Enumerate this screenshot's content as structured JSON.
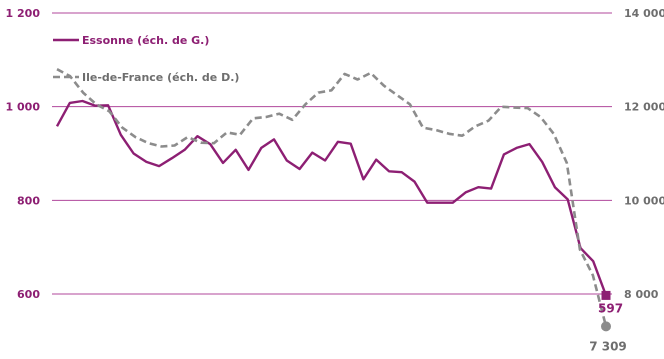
{
  "chart_data": {
    "type": "line",
    "axes": {
      "left": {
        "range": [
          600,
          1200
        ],
        "ticks": [
          "600",
          "800",
          "1 000",
          "1 200"
        ],
        "tick_values": [
          600,
          800,
          1000,
          1200
        ]
      },
      "right": {
        "range": [
          8000,
          14000
        ],
        "ticks": [
          "8 000",
          "10 000",
          "12 000",
          "14 000"
        ],
        "tick_values": [
          8000,
          10000,
          12000,
          14000
        ]
      }
    },
    "grid": true,
    "legend_position": "top-left",
    "series": [
      {
        "name": "Essonne (éch. de G.)",
        "axis": "left",
        "color": "#8d1f73",
        "style": "solid",
        "values": [
          958,
          1008,
          1012,
          1002,
          1003,
          940,
          900,
          882,
          873,
          890,
          908,
          937,
          920,
          880,
          908,
          865,
          912,
          930,
          885,
          867,
          902,
          885,
          925,
          921,
          845,
          887,
          862,
          860,
          840,
          795,
          795,
          795,
          817,
          828,
          825,
          898,
          912,
          920,
          882,
          828,
          802,
          698,
          670,
          597
        ],
        "end_label": "597",
        "end_marker": "square"
      },
      {
        "name": "Ile-de-France (éch. de D.)",
        "axis": "right",
        "color": "#8c8c8c",
        "style": "dashed",
        "values": [
          12800,
          12650,
          12300,
          12050,
          11900,
          11550,
          11350,
          11220,
          11150,
          11170,
          11350,
          11230,
          11220,
          11450,
          11400,
          11750,
          11780,
          11850,
          11720,
          12050,
          12300,
          12350,
          12700,
          12580,
          12720,
          12450,
          12250,
          12050,
          11550,
          11500,
          11420,
          11380,
          11580,
          11700,
          12000,
          11980,
          11970,
          11780,
          11420,
          10800,
          8950,
          8400,
          7309
        ],
        "end_label": "7 309",
        "end_marker": "circle"
      }
    ]
  }
}
